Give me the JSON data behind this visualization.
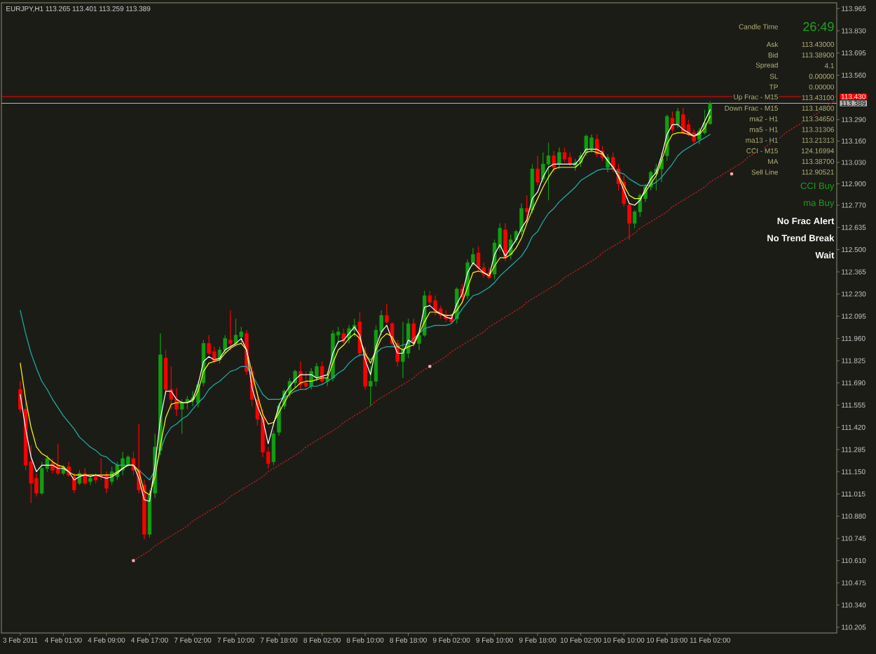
{
  "chart_data": {
    "type": "candlestick",
    "title": "EURJPY,H1 113.265 113.401 113.259 113.389",
    "categories": [
      "3 Feb 2011",
      null,
      null,
      null,
      null,
      null,
      null,
      null,
      "4 Feb 01:00",
      null,
      null,
      null,
      null,
      null,
      null,
      null,
      "4 Feb 09:00",
      null,
      null,
      null,
      null,
      null,
      null,
      null,
      "4 Feb 17:00",
      null,
      null,
      null,
      null,
      null,
      null,
      null,
      "7 Feb 02:00",
      null,
      null,
      null,
      null,
      null,
      null,
      null,
      "7 Feb 10:00",
      null,
      null,
      null,
      null,
      null,
      null,
      null,
      "7 Feb 18:00",
      null,
      null,
      null,
      null,
      null,
      null,
      null,
      "8 Feb 02:00",
      null,
      null,
      null,
      null,
      null,
      null,
      null,
      "8 Feb 10:00",
      null,
      null,
      null,
      null,
      null,
      null,
      null,
      "8 Feb 18:00",
      null,
      null,
      null,
      null,
      null,
      null,
      null,
      "9 Feb 02:00",
      null,
      null,
      null,
      null,
      null,
      null,
      null,
      "9 Feb 10:00",
      null,
      null,
      null,
      null,
      null,
      null,
      null,
      "9 Feb 18:00",
      null,
      null,
      null,
      null,
      null,
      null,
      null,
      "10 Feb 02:00",
      null,
      null,
      null,
      null,
      null,
      null,
      null,
      "10 Feb 10:00",
      null,
      null,
      null,
      null,
      null,
      null,
      null,
      "10 Feb 18:00",
      null,
      null,
      null,
      null,
      null,
      null,
      null,
      "11 Feb 02:00",
      null,
      null,
      null,
      null,
      null,
      null,
      null,
      null,
      null,
      null,
      null,
      null,
      null,
      null,
      null,
      null,
      null,
      null,
      null,
      null,
      null,
      null,
      null
    ],
    "ohlc": [
      [
        111.65,
        111.7,
        111.51,
        111.53
      ],
      [
        111.53,
        111.57,
        111.16,
        111.19
      ],
      [
        111.21,
        111.31,
        110.96,
        111.08
      ],
      [
        111.11,
        111.14,
        111.0,
        111.02
      ],
      [
        111.02,
        111.21,
        111.01,
        111.17
      ],
      [
        111.17,
        111.25,
        111.15,
        111.23
      ],
      [
        111.2,
        111.23,
        111.14,
        111.16
      ],
      [
        111.19,
        111.32,
        111.13,
        111.14
      ],
      [
        111.14,
        111.19,
        111.13,
        111.18
      ],
      [
        111.18,
        111.21,
        111.12,
        111.13
      ],
      [
        111.12,
        111.14,
        111.02,
        111.04
      ],
      [
        111.08,
        111.16,
        111.07,
        111.14
      ],
      [
        111.14,
        111.17,
        111.07,
        111.08
      ],
      [
        111.09,
        111.13,
        111.07,
        111.11
      ],
      [
        111.12,
        111.14,
        111.08,
        111.1
      ],
      [
        111.13,
        111.23,
        111.1,
        111.12
      ],
      [
        111.13,
        111.15,
        111.02,
        111.05
      ],
      [
        111.09,
        111.18,
        111.07,
        111.15
      ],
      [
        111.12,
        111.21,
        111.1,
        111.19
      ],
      [
        111.16,
        111.27,
        111.13,
        111.23
      ],
      [
        111.19,
        111.25,
        111.18,
        111.24
      ],
      [
        111.23,
        111.27,
        111.13,
        111.16
      ],
      [
        111.16,
        111.44,
        111.02,
        111.04
      ],
      [
        111.07,
        111.1,
        110.74,
        110.77
      ],
      [
        110.77,
        111.04,
        110.75,
        111.01
      ],
      [
        111.02,
        111.38,
        110.99,
        111.3
      ],
      [
        111.28,
        111.99,
        111.25,
        111.86
      ],
      [
        111.84,
        111.89,
        111.62,
        111.65
      ],
      [
        111.65,
        111.79,
        111.53,
        111.59
      ],
      [
        111.59,
        111.66,
        111.49,
        111.53
      ],
      [
        111.53,
        111.59,
        111.38,
        111.57
      ],
      [
        111.57,
        111.61,
        111.53,
        111.59
      ],
      [
        111.59,
        111.64,
        111.55,
        111.6
      ],
      [
        111.57,
        111.7,
        111.54,
        111.68
      ],
      [
        111.69,
        111.95,
        111.67,
        111.93
      ],
      [
        111.93,
        111.98,
        111.86,
        111.87
      ],
      [
        111.88,
        111.91,
        111.81,
        111.82
      ],
      [
        111.83,
        111.91,
        111.81,
        111.89
      ],
      [
        111.89,
        111.98,
        111.87,
        111.96
      ],
      [
        111.95,
        112.13,
        111.89,
        111.93
      ],
      [
        111.93,
        112.08,
        111.91,
        111.98
      ],
      [
        111.97,
        112.03,
        111.93,
        112.0
      ],
      [
        111.99,
        112.01,
        111.74,
        111.76
      ],
      [
        111.76,
        111.79,
        111.55,
        111.59
      ],
      [
        111.59,
        111.64,
        111.43,
        111.47
      ],
      [
        111.48,
        111.53,
        111.24,
        111.27
      ],
      [
        111.27,
        111.3,
        111.17,
        111.2
      ],
      [
        111.21,
        111.4,
        111.19,
        111.38
      ],
      [
        111.39,
        111.57,
        111.37,
        111.55
      ],
      [
        111.55,
        111.65,
        111.53,
        111.64
      ],
      [
        111.63,
        111.72,
        111.6,
        111.7
      ],
      [
        111.69,
        111.77,
        111.66,
        111.76
      ],
      [
        111.76,
        111.82,
        111.65,
        111.68
      ],
      [
        111.69,
        111.76,
        111.65,
        111.67
      ],
      [
        111.67,
        111.78,
        111.65,
        111.76
      ],
      [
        111.72,
        111.81,
        111.7,
        111.79
      ],
      [
        111.79,
        111.82,
        111.68,
        111.7
      ],
      [
        111.7,
        111.76,
        111.67,
        111.72
      ],
      [
        111.72,
        112.01,
        111.7,
        111.99
      ],
      [
        111.98,
        112.03,
        111.93,
        112.0
      ],
      [
        111.99,
        112.02,
        111.93,
        111.94
      ],
      [
        111.96,
        112.04,
        111.93,
        112.02
      ],
      [
        112.01,
        112.08,
        111.97,
        112.04
      ],
      [
        112.06,
        112.12,
        111.85,
        111.87
      ],
      [
        111.87,
        111.91,
        111.65,
        111.67
      ],
      [
        111.67,
        111.79,
        111.55,
        111.7
      ],
      [
        111.7,
        112.04,
        111.67,
        112.01
      ],
      [
        112.0,
        112.13,
        111.98,
        112.1
      ],
      [
        112.1,
        112.17,
        112.05,
        112.06
      ],
      [
        112.05,
        112.06,
        111.91,
        111.93
      ],
      [
        111.93,
        111.95,
        111.79,
        111.82
      ],
      [
        111.82,
        112.06,
        111.72,
        111.89
      ],
      [
        111.87,
        112.08,
        111.84,
        112.05
      ],
      [
        112.05,
        112.08,
        111.91,
        111.93
      ],
      [
        111.93,
        111.99,
        111.89,
        111.98
      ],
      [
        111.98,
        112.25,
        111.97,
        112.22
      ],
      [
        112.22,
        112.25,
        112.16,
        112.18
      ],
      [
        112.19,
        112.22,
        112.1,
        112.13
      ],
      [
        112.14,
        112.16,
        112.08,
        112.1
      ],
      [
        112.1,
        112.13,
        112.06,
        112.08
      ],
      [
        112.09,
        112.11,
        112.05,
        112.06
      ],
      [
        112.08,
        112.27,
        112.05,
        112.26
      ],
      [
        112.26,
        112.29,
        112.19,
        112.21
      ],
      [
        112.22,
        112.44,
        112.2,
        112.42
      ],
      [
        112.42,
        112.51,
        112.4,
        112.47
      ],
      [
        112.48,
        112.52,
        112.36,
        112.39
      ],
      [
        112.39,
        112.42,
        112.33,
        112.35
      ],
      [
        112.36,
        112.39,
        112.32,
        112.33
      ],
      [
        112.35,
        112.56,
        112.32,
        112.54
      ],
      [
        112.51,
        112.66,
        112.49,
        112.63
      ],
      [
        112.62,
        112.66,
        112.43,
        112.45
      ],
      [
        112.47,
        112.59,
        112.44,
        112.56
      ],
      [
        112.56,
        112.62,
        112.54,
        112.61
      ],
      [
        112.61,
        112.78,
        112.59,
        112.75
      ],
      [
        112.75,
        112.83,
        112.66,
        112.73
      ],
      [
        112.74,
        113.02,
        112.72,
        112.99
      ],
      [
        112.99,
        113.07,
        112.89,
        112.91
      ],
      [
        112.93,
        113.09,
        112.91,
        113.02
      ],
      [
        113.02,
        113.15,
        112.8,
        113.07
      ],
      [
        113.07,
        113.1,
        112.97,
        113.0
      ],
      [
        113.02,
        113.12,
        112.99,
        113.09
      ],
      [
        113.09,
        113.12,
        113.03,
        113.05
      ],
      [
        113.06,
        113.09,
        113.01,
        113.02
      ],
      [
        113.01,
        113.05,
        112.98,
        113.03
      ],
      [
        113.03,
        113.09,
        113.0,
        113.07
      ],
      [
        113.09,
        113.2,
        113.07,
        113.19
      ],
      [
        113.11,
        113.2,
        113.09,
        113.18
      ],
      [
        113.17,
        113.2,
        113.06,
        113.08
      ],
      [
        113.1,
        113.13,
        113.04,
        113.06
      ],
      [
        113.0,
        113.08,
        112.97,
        113.06
      ],
      [
        113.06,
        113.09,
        112.97,
        112.99
      ],
      [
        112.99,
        113.02,
        112.86,
        112.9
      ],
      [
        112.91,
        112.95,
        112.76,
        112.78
      ],
      [
        112.77,
        112.79,
        112.56,
        112.66
      ],
      [
        112.66,
        112.74,
        112.63,
        112.73
      ],
      [
        112.73,
        112.84,
        112.7,
        112.83
      ],
      [
        112.81,
        112.9,
        112.79,
        112.88
      ],
      [
        112.88,
        112.98,
        112.86,
        112.97
      ],
      [
        112.96,
        113.02,
        112.86,
        112.99
      ],
      [
        112.99,
        113.09,
        112.91,
        113.05
      ],
      [
        113.07,
        113.32,
        113.04,
        113.31
      ],
      [
        113.3,
        113.34,
        113.21,
        113.23
      ],
      [
        113.26,
        113.36,
        113.24,
        113.34
      ],
      [
        113.32,
        113.36,
        113.2,
        113.21
      ],
      [
        113.26,
        113.29,
        113.19,
        113.2
      ],
      [
        113.21,
        113.23,
        113.14,
        113.16
      ],
      [
        113.17,
        113.24,
        113.14,
        113.22
      ],
      [
        113.21,
        113.35,
        113.2,
        113.27
      ],
      [
        113.265,
        113.401,
        113.259,
        113.389
      ],
      null,
      null,
      null,
      null,
      null,
      null,
      null,
      null,
      null,
      null,
      null,
      null,
      null,
      null,
      null,
      null,
      null,
      null,
      null,
      null,
      null,
      null,
      null
    ],
    "colors": [
      "#ff0000",
      "#ff0000",
      "#ff0000",
      "#ff0000",
      "#10a010",
      "#10a010",
      "#ff0000",
      "#ff0000",
      "#10a010",
      "#ff0000",
      "#ff0000",
      "#10a010",
      "#ff0000",
      "#10a010",
      "#ff0000",
      "#ff0000",
      "#ff0000",
      "#10a010",
      "#10a010",
      "#10a010",
      "#10a010",
      "#ff0000",
      "#ff0000",
      "#ff0000",
      "#10a010",
      "#10a010",
      "#10a010",
      "#ff0000",
      "#ff0000",
      "#ff0000",
      "#10a010",
      "#10a010",
      "#10a010",
      "#10a010",
      "#10a010",
      "#ff0000",
      "#ff0000",
      "#10a010",
      "#10a010",
      "#ff0000",
      "#10a010",
      "#10a010",
      "#ff0000",
      "#ff0000",
      "#ff0000",
      "#ff0000",
      "#ff0000",
      "#10a010",
      "#10a010",
      "#10a010",
      "#10a010",
      "#10a010",
      "#ff0000",
      "#ff0000",
      "#10a010",
      "#10a010",
      "#ff0000",
      "#10a010",
      "#10a010",
      "#10a010",
      "#ff0000",
      "#10a010",
      "#10a010",
      "#ff0000",
      "#ff0000",
      "#10a010",
      "#10a010",
      "#10a010",
      "#ff0000",
      "#ff0000",
      "#ff0000",
      "#10a010",
      "#10a010",
      "#ff0000",
      "#10a010",
      "#10a010",
      "#ff0000",
      "#ff0000",
      "#ff0000",
      "#ff0000",
      "#ff0000",
      "#10a010",
      "#ff0000",
      "#10a010",
      "#10a010",
      "#ff0000",
      "#ff0000",
      "#ff0000",
      "#10a010",
      "#10a010",
      "#ff0000",
      "#10a010",
      "#10a010",
      "#10a010",
      "#ff0000",
      "#10a010",
      "#ff0000",
      "#10a010",
      "#10a010",
      "#ff0000",
      "#10a010",
      "#ff0000",
      "#ff0000",
      "#10a010",
      "#10a010",
      "#10a010",
      "#10a010",
      "#ff0000",
      "#ff0000",
      "#10a010",
      "#ff0000",
      "#ff0000",
      "#ff0000",
      "#ff0000",
      "#10a010",
      "#10a010",
      "#10a010",
      "#10a010",
      "#10a010",
      "#10a010",
      "#10a010",
      "#ff0000",
      "#10a010",
      "#ff0000",
      "#ff0000",
      "#ff0000",
      "#10a010",
      "#10a010",
      "#10a010",
      null,
      null,
      null,
      null,
      null,
      null,
      null,
      null,
      null,
      null,
      null,
      null,
      null,
      null,
      null,
      null,
      null,
      null,
      null,
      null,
      null,
      null,
      null
    ],
    "series": [
      {
        "type": "line",
        "color": "#20b2aa",
        "values": [
          112.13,
          111.99,
          111.87,
          111.78,
          111.7,
          111.65,
          111.59,
          111.54,
          111.49,
          111.45,
          111.41,
          111.36,
          111.33,
          111.3,
          111.28,
          111.25,
          111.24,
          111.21,
          111.19,
          111.19,
          111.19,
          111.19,
          111.16,
          111.13,
          111.1,
          111.16,
          111.28,
          111.37,
          111.42,
          111.44,
          111.47,
          111.49,
          111.53,
          111.57,
          111.6,
          111.65,
          111.68,
          111.7,
          111.73,
          111.76,
          111.77,
          111.79,
          111.79,
          111.74,
          111.68,
          111.62,
          111.59,
          111.59,
          111.59,
          111.6,
          111.62,
          111.64,
          111.65,
          111.65,
          111.67,
          111.67,
          111.68,
          111.7,
          111.72,
          111.75,
          111.77,
          111.81,
          111.84,
          111.86,
          111.86,
          111.83,
          111.87,
          111.9,
          111.91,
          111.91,
          111.91,
          111.92,
          111.93,
          111.96,
          111.99,
          112.02,
          112.03,
          112.04,
          112.04,
          112.04,
          112.05,
          112.09,
          112.14,
          112.18,
          112.22,
          112.23,
          112.25,
          112.27,
          112.3,
          112.34,
          112.37,
          112.4,
          112.43,
          112.46,
          112.51,
          112.58,
          112.61,
          112.67,
          112.72,
          112.75,
          112.79,
          112.82,
          112.85,
          112.88,
          112.92,
          112.94,
          112.96,
          112.98,
          112.99,
          112.99,
          112.99,
          112.97,
          112.96,
          112.93,
          112.91,
          112.89,
          112.89,
          112.89,
          112.91,
          112.94,
          112.98,
          113.02,
          113.07,
          113.1,
          113.12,
          113.14,
          113.16,
          113.18,
          113.2,
          null,
          null,
          null,
          null,
          null,
          null,
          null,
          null,
          null,
          null,
          null,
          null,
          null,
          null,
          null,
          null,
          null,
          null,
          null,
          null,
          null,
          null,
          null
        ]
      },
      {
        "type": "line",
        "color": "#ffff00",
        "values": [
          111.81,
          111.59,
          111.42,
          111.3,
          111.26,
          111.24,
          111.21,
          111.19,
          111.18,
          111.15,
          111.13,
          111.13,
          111.13,
          111.13,
          111.13,
          111.13,
          111.13,
          111.13,
          111.15,
          111.17,
          111.19,
          111.19,
          111.15,
          111.03,
          111.01,
          111.12,
          111.31,
          111.48,
          111.56,
          111.57,
          111.57,
          111.57,
          111.58,
          111.64,
          111.76,
          111.81,
          111.82,
          111.83,
          111.87,
          111.9,
          111.92,
          111.93,
          111.89,
          111.75,
          111.62,
          111.5,
          111.44,
          111.45,
          111.51,
          111.57,
          111.63,
          111.66,
          111.69,
          111.7,
          111.7,
          111.71,
          111.72,
          111.72,
          111.81,
          111.89,
          111.92,
          111.96,
          111.99,
          111.96,
          111.87,
          111.81,
          111.89,
          111.96,
          111.99,
          111.97,
          111.91,
          111.89,
          111.91,
          111.92,
          111.99,
          112.06,
          112.12,
          112.12,
          112.11,
          112.1,
          112.1,
          112.13,
          112.18,
          112.27,
          112.36,
          112.37,
          112.36,
          112.34,
          112.4,
          112.45,
          112.45,
          112.47,
          112.51,
          112.57,
          112.66,
          112.74,
          112.81,
          112.88,
          112.94,
          112.99,
          113.0,
          113.0,
          113.0,
          113.0,
          113.03,
          113.09,
          113.1,
          113.09,
          113.08,
          113.04,
          113.0,
          112.95,
          112.89,
          112.83,
          112.81,
          112.81,
          112.85,
          112.9,
          112.95,
          113.04,
          113.14,
          113.2,
          113.21,
          113.21,
          113.2,
          113.19,
          113.2,
          113.24,
          113.31,
          null,
          null,
          null,
          null,
          null,
          null,
          null,
          null,
          null,
          null,
          null,
          null,
          null,
          null,
          null,
          null,
          null,
          null,
          null,
          null,
          null,
          null,
          null
        ]
      },
      {
        "type": "line",
        "color": "#ffffff",
        "values": [
          111.62,
          111.41,
          111.24,
          111.15,
          111.19,
          111.19,
          111.19,
          111.17,
          111.17,
          111.15,
          111.1,
          111.12,
          111.13,
          111.12,
          111.13,
          111.12,
          111.11,
          111.12,
          111.14,
          111.17,
          111.19,
          111.19,
          111.11,
          110.98,
          110.97,
          111.19,
          111.47,
          111.64,
          111.64,
          111.59,
          111.57,
          111.57,
          111.59,
          111.68,
          111.82,
          111.85,
          111.83,
          111.84,
          111.89,
          111.91,
          111.93,
          111.96,
          111.89,
          111.66,
          111.55,
          111.47,
          111.32,
          111.44,
          111.55,
          111.62,
          111.67,
          111.71,
          111.74,
          111.74,
          111.74,
          111.72,
          111.73,
          111.74,
          111.87,
          111.94,
          111.95,
          111.99,
          112.03,
          111.98,
          111.83,
          111.74,
          111.91,
          112.0,
          112.04,
          111.95,
          111.87,
          111.87,
          111.95,
          111.93,
          112.0,
          112.15,
          112.16,
          112.13,
          112.11,
          112.09,
          112.08,
          112.17,
          112.23,
          112.36,
          112.42,
          112.39,
          112.36,
          112.34,
          112.47,
          112.53,
          112.46,
          112.51,
          112.56,
          112.63,
          112.68,
          112.81,
          112.85,
          112.94,
          113.0,
          113.02,
          113.02,
          113.02,
          113.02,
          113.02,
          113.06,
          113.11,
          113.11,
          113.11,
          113.09,
          113.04,
          113.0,
          112.94,
          112.86,
          112.78,
          112.77,
          112.8,
          112.87,
          112.93,
          112.97,
          113.07,
          113.2,
          113.26,
          113.26,
          113.23,
          113.21,
          113.19,
          113.21,
          113.28,
          113.35,
          null,
          null,
          null,
          null,
          null,
          null,
          null,
          null,
          null,
          null,
          null,
          null,
          null,
          null,
          null,
          null,
          null,
          null,
          null,
          null,
          null,
          null,
          null
        ]
      },
      {
        "type": "line",
        "color": "#c81e1e",
        "line_style": "dotted",
        "values": [
          null,
          null,
          null,
          null,
          null,
          null,
          null,
          null,
          null,
          null,
          null,
          null,
          null,
          null,
          null,
          null,
          null,
          null,
          null,
          null,
          null,
          110.61,
          110.63,
          110.65,
          110.67,
          110.7,
          110.72,
          110.74,
          110.76,
          110.78,
          110.8,
          110.82,
          110.85,
          110.87,
          110.89,
          110.91,
          110.93,
          110.95,
          110.97,
          111.0,
          111.02,
          111.04,
          111.06,
          111.08,
          111.1,
          111.12,
          111.15,
          111.17,
          111.19,
          111.21,
          111.23,
          111.25,
          111.27,
          111.3,
          111.32,
          111.34,
          111.36,
          111.38,
          111.4,
          111.42,
          111.45,
          111.47,
          111.49,
          111.51,
          111.53,
          111.55,
          111.58,
          111.6,
          111.62,
          111.64,
          111.66,
          111.68,
          111.7,
          111.72,
          111.75,
          111.77,
          111.79,
          111.81,
          111.83,
          111.85,
          111.88,
          111.9,
          111.92,
          111.94,
          111.96,
          111.98,
          112.0,
          112.03,
          112.05,
          112.07,
          112.09,
          112.11,
          112.13,
          112.15,
          112.18,
          112.2,
          112.22,
          112.24,
          112.26,
          112.28,
          112.3,
          112.33,
          112.35,
          112.37,
          112.39,
          112.41,
          112.43,
          112.45,
          112.48,
          112.5,
          112.52,
          112.54,
          112.56,
          112.58,
          112.6,
          112.63,
          112.65,
          112.67,
          112.69,
          112.71,
          112.73,
          112.76,
          112.78,
          112.8,
          112.82,
          112.84,
          112.86,
          112.88,
          112.91,
          112.93,
          112.95,
          112.97,
          112.99,
          113.01,
          113.03,
          113.06,
          113.08,
          113.1,
          113.12,
          113.14,
          113.16,
          113.18,
          113.21,
          113.23,
          113.25,
          113.27,
          113.29,
          113.31,
          113.33,
          113.36,
          113.38,
          113.4
        ]
      },
      {
        "type": "scatter",
        "color": "#ffb4b4",
        "marker": "square",
        "values": [
          null,
          null,
          null,
          null,
          null,
          null,
          null,
          null,
          null,
          null,
          null,
          null,
          null,
          null,
          null,
          null,
          null,
          null,
          null,
          null,
          null,
          110.61,
          null,
          null,
          null,
          null,
          null,
          null,
          null,
          null,
          null,
          null,
          null,
          null,
          null,
          null,
          null,
          null,
          null,
          null,
          null,
          null,
          null,
          null,
          null,
          null,
          null,
          null,
          null,
          null,
          null,
          null,
          null,
          null,
          null,
          null,
          null,
          null,
          null,
          null,
          null,
          null,
          null,
          null,
          null,
          null,
          null,
          null,
          null,
          null,
          null,
          null,
          null,
          null,
          null,
          null,
          111.79,
          null,
          null,
          null,
          null,
          null,
          null,
          null,
          null,
          null,
          null,
          null,
          null,
          null,
          null,
          null,
          null,
          null,
          null,
          null,
          null,
          null,
          null,
          null,
          null,
          null,
          null,
          null,
          null,
          null,
          null,
          null,
          null,
          null,
          null,
          null,
          null,
          null,
          null,
          null,
          null,
          null,
          null,
          null,
          null,
          null,
          null,
          null,
          null,
          null,
          null,
          null,
          null,
          null,
          null,
          null,
          112.96,
          null,
          null,
          null,
          null,
          null,
          null,
          null,
          null,
          null,
          null,
          null,
          null,
          null,
          null,
          null,
          null,
          null,
          null,
          null
        ]
      }
    ],
    "ylim": [
      110.17,
      114.0
    ],
    "yticks": [
      113.965,
      {
        "value": 113.83,
        "label": "113.830"
      },
      113.695,
      {
        "value": 113.56,
        "label": "113.560"
      },
      {
        "value": 113.29,
        "label": "113.290"
      },
      {
        "value": 113.16,
        "label": "113.160"
      },
      {
        "value": 113.03,
        "label": "113.030"
      },
      {
        "value": 112.9,
        "label": "112.900"
      },
      {
        "value": 112.77,
        "label": "112.770"
      },
      112.635,
      {
        "value": 112.5,
        "label": "112.500"
      },
      112.365,
      {
        "value": 112.23,
        "label": "112.230"
      },
      112.095,
      {
        "value": 111.96,
        "label": "111.960"
      },
      111.825,
      {
        "value": 111.69,
        "label": "111.690"
      },
      111.555,
      {
        "value": 111.42,
        "label": "111.420"
      },
      111.285,
      {
        "value": 111.15,
        "label": "111.150"
      },
      111.015,
      {
        "value": 110.88,
        "label": "110.880"
      },
      110.745,
      {
        "value": 110.61,
        "label": "110.610"
      },
      110.475,
      {
        "value": 110.34,
        "label": "110.340"
      },
      110.205
    ],
    "ref_lines": [
      {
        "axis": "y",
        "value": 113.43,
        "label": "113.430",
        "color": "#ff0000"
      },
      {
        "axis": "y",
        "value": 113.389,
        "label": "113.389",
        "color": "#b4b4b4"
      }
    ],
    "annotations": [
      "Candle Time",
      "26:49",
      "Ask",
      "113.43000",
      "Bid",
      "113.38900",
      "Spread",
      "4.1",
      "SL",
      "0.00000",
      "TP",
      "0.00000",
      "Up Frac - M15",
      "113.43100",
      "Down Frac - M15",
      "113.14800",
      "ma2 - H1",
      "113.34650",
      "ma5 - H1",
      "113.31306",
      "ma13 - H1",
      "113.21313",
      "CCI - M15",
      "124.16994",
      "MA",
      "113.38700",
      "Sell Line",
      "112.90521",
      "CCI Buy",
      "ma Buy",
      "No Frac Alert",
      "No Trend Break",
      "Wait"
    ]
  }
}
